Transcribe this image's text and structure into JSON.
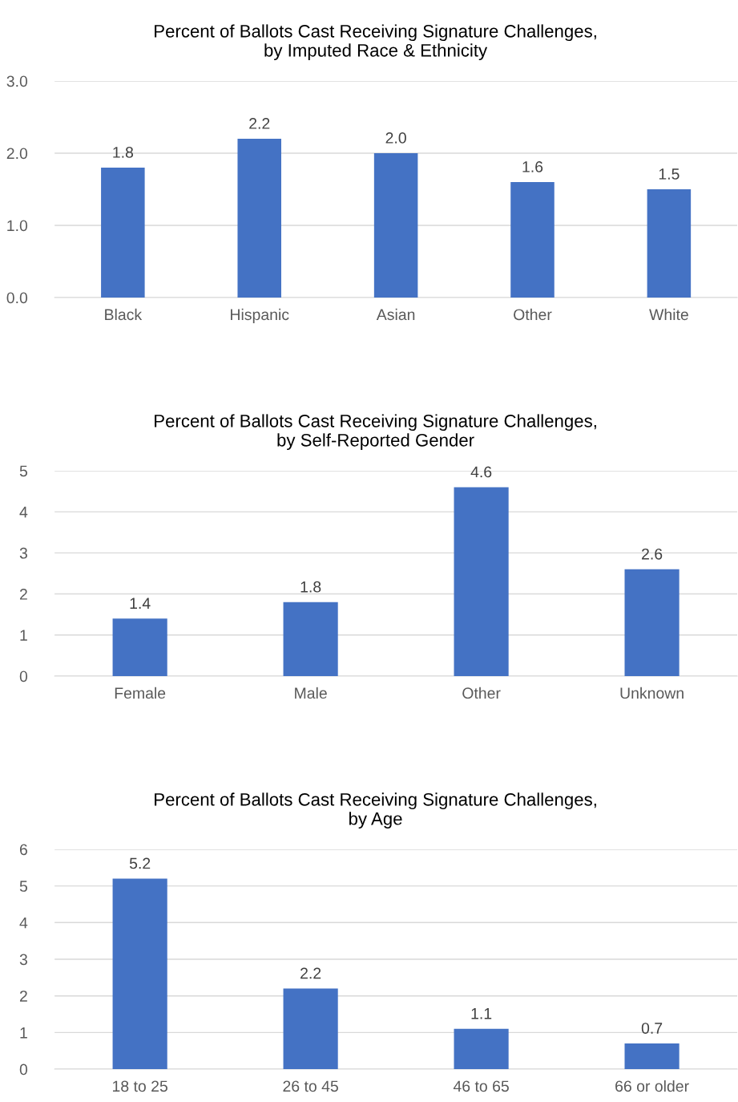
{
  "chart_data": [
    {
      "type": "bar",
      "title": "Percent of Ballots Cast Receiving Signature Challenges,\nby Imputed Race & Ethnicity",
      "categories": [
        "Black",
        "Hispanic",
        "Asian",
        "Other",
        "White"
      ],
      "values": [
        1.8,
        2.2,
        2.0,
        1.6,
        1.5
      ],
      "value_labels": [
        "1.8",
        "2.2",
        "2.0",
        "1.6",
        "1.5"
      ],
      "color": "#4472c4",
      "ylim": [
        0,
        3
      ],
      "yticks": [
        {
          "value": 0,
          "label": "0.0"
        },
        {
          "value": 1,
          "label": "1.0"
        },
        {
          "value": 2,
          "label": "2.0"
        },
        {
          "value": 3,
          "label": "3.0"
        }
      ],
      "grid": "y"
    },
    {
      "type": "bar",
      "title": "Percent of Ballots Cast Receiving Signature Challenges,\nby Self-Reported Gender",
      "categories": [
        "Female",
        "Male",
        "Other",
        "Unknown"
      ],
      "values": [
        1.4,
        1.8,
        4.6,
        2.6
      ],
      "data_labels": true,
      "color": "#4472c4",
      "ylim": [
        0,
        5
      ],
      "yticks": [
        0,
        1,
        2,
        3,
        4,
        5
      ],
      "grid": "y"
    },
    {
      "type": "bar",
      "title": "Percent of Ballots Cast Receiving Signature Challenges,\nby Age",
      "categories": [
        "18 to 25",
        "26 to 45",
        "46 to 65",
        "66 or older"
      ],
      "values": [
        5.2,
        2.2,
        1.1,
        0.7
      ],
      "data_labels": true,
      "color": "#4472c4",
      "ylim": [
        0,
        6
      ],
      "yticks": [
        0,
        1,
        2,
        3,
        4,
        5,
        6
      ],
      "grid": "y"
    }
  ]
}
